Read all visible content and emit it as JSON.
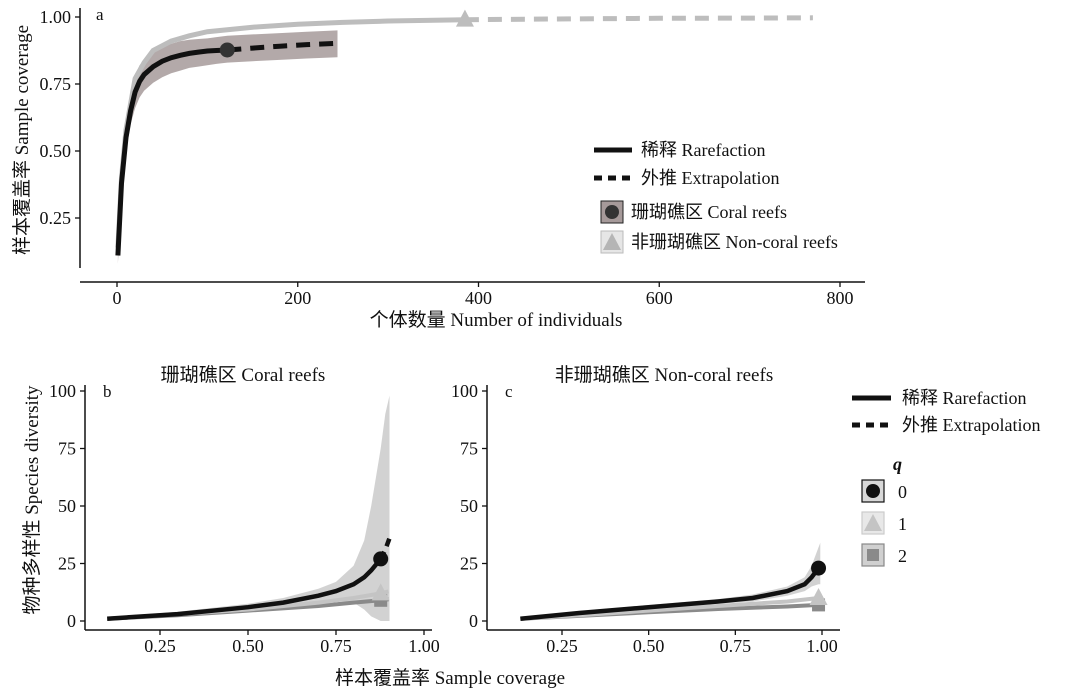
{
  "legend": {
    "rarefaction": "稀释 Rarefaction",
    "extrapolation": "外推 Extrapolation",
    "coral": "珊瑚礁区 Coral reefs",
    "noncoral": "非珊瑚礁区 Non-coral reefs",
    "q_title": "q",
    "q0": "0",
    "q1": "1",
    "q2": "2"
  },
  "colors": {
    "coral": "#111111",
    "noncoral": "#bdbdbd",
    "q0": "#111111",
    "q1": "#c4c4c4",
    "q2": "#8a8a8a",
    "band_dark": "#a69a9a",
    "band_light": "#d0d0d0"
  },
  "chart_data": [
    {
      "panel": "a",
      "type": "line",
      "xlabel": "个体数量 Number of individuals",
      "ylabel": "样本覆盖率 Sample coverage",
      "xlim": [
        -12,
        860
      ],
      "ylim": [
        0.08,
        1.02
      ],
      "xticks": [
        "0",
        "200",
        "400",
        "600",
        "800"
      ],
      "yticks": [
        "0.25",
        "0.50",
        "0.75",
        "1.00"
      ],
      "series": [
        {
          "name": "珊瑚礁区 Coral reefs",
          "observed": {
            "x": 122,
            "y": 0.877
          },
          "rarefaction": {
            "x": [
              1,
              5,
              10,
              15,
              20,
              25,
              30,
              40,
              50,
              60,
              70,
              80,
              90,
              100,
              110,
              122
            ],
            "y": [
              0.11,
              0.38,
              0.55,
              0.65,
              0.72,
              0.76,
              0.785,
              0.815,
              0.835,
              0.848,
              0.857,
              0.864,
              0.869,
              0.873,
              0.875,
              0.877
            ]
          },
          "extrapolation": {
            "x": [
              122,
              150,
              180,
              210,
              244
            ],
            "y": [
              0.877,
              0.884,
              0.891,
              0.897,
              0.902
            ]
          },
          "band_upper": [
            0.2,
            0.45,
            0.62,
            0.72,
            0.78,
            0.82,
            0.84,
            0.87,
            0.89,
            0.9,
            0.91,
            0.915,
            0.918,
            0.92,
            0.925,
            0.93,
            0.935,
            0.94,
            0.945,
            0.95
          ],
          "band_lower": [
            0.08,
            0.32,
            0.5,
            0.6,
            0.66,
            0.7,
            0.725,
            0.755,
            0.775,
            0.79,
            0.8,
            0.81,
            0.815,
            0.82,
            0.825,
            0.83,
            0.835,
            0.84,
            0.845,
            0.85
          ],
          "band_x": [
            1,
            5,
            10,
            15,
            20,
            25,
            30,
            40,
            50,
            60,
            70,
            80,
            90,
            100,
            110,
            122,
            150,
            180,
            210,
            244
          ]
        },
        {
          "name": "非珊瑚礁区 Non-coral reefs",
          "observed": {
            "x": 385,
            "y": 0.99
          },
          "rarefaction": {
            "x": [
              1,
              5,
              10,
              20,
              30,
              40,
              60,
              80,
              100,
              150,
              200,
              250,
              300,
              385
            ],
            "y": [
              0.14,
              0.4,
              0.58,
              0.77,
              0.83,
              0.875,
              0.91,
              0.93,
              0.945,
              0.962,
              0.973,
              0.98,
              0.985,
              0.99
            ]
          },
          "extrapolation": {
            "x": [
              385,
              500,
              600,
              700,
              770
            ],
            "y": [
              0.99,
              0.993,
              0.995,
              0.996,
              0.997
            ]
          }
        }
      ]
    },
    {
      "panel": "b",
      "type": "line",
      "title": "珊瑚礁区 Coral reefs",
      "xlim": [
        0.05,
        1.0
      ],
      "ylim": [
        -3,
        100
      ],
      "xticks": [
        "0.25",
        "0.50",
        "0.75",
        "1.00"
      ],
      "yticks": [
        "0",
        "25",
        "50",
        "75",
        "100"
      ],
      "series": [
        {
          "name": "0",
          "observed": {
            "x": 0.877,
            "y": 27
          },
          "rarefaction": {
            "x": [
              0.1,
              0.3,
              0.5,
              0.6,
              0.7,
              0.75,
              0.8,
              0.83,
              0.85,
              0.877
            ],
            "y": [
              1,
              3,
              6,
              8,
              11,
              13,
              16,
              19,
              22,
              27
            ]
          },
          "extrapolation": {
            "x": [
              0.877,
              0.89,
              0.902
            ],
            "y": [
              27,
              31,
              36
            ]
          },
          "band_x": [
            0.1,
            0.3,
            0.5,
            0.6,
            0.7,
            0.75,
            0.8,
            0.83,
            0.85,
            0.877,
            0.89,
            0.902
          ],
          "band_upper": [
            1.5,
            4,
            7.5,
            10,
            14,
            17,
            24,
            35,
            50,
            75,
            90,
            98
          ],
          "band_lower": [
            0.5,
            2,
            4.5,
            6,
            8,
            9,
            8,
            5,
            2,
            0,
            0,
            0
          ]
        },
        {
          "name": "1",
          "observed": {
            "x": 0.877,
            "y": 12
          },
          "rarefaction": {
            "x": [
              0.1,
              0.3,
              0.5,
              0.7,
              0.8,
              0.877
            ],
            "y": [
              1,
              3,
              5,
              8,
              10,
              12
            ]
          },
          "extrapolation": {
            "x": [
              0.877,
              0.902
            ],
            "y": [
              12,
              13
            ]
          }
        },
        {
          "name": "2",
          "observed": {
            "x": 0.877,
            "y": 9
          },
          "rarefaction": {
            "x": [
              0.1,
              0.3,
              0.5,
              0.7,
              0.8,
              0.877
            ],
            "y": [
              1,
              2.5,
              4.5,
              6.5,
              8,
              9
            ]
          },
          "extrapolation": {
            "x": [
              0.877,
              0.902
            ],
            "y": [
              9,
              9.5
            ]
          }
        }
      ]
    },
    {
      "panel": "c",
      "type": "line",
      "title": "非珊瑚礁区 Non-coral reefs",
      "xlim": [
        0.1,
        1.02
      ],
      "ylim": [
        -3,
        100
      ],
      "xticks": [
        "0.25",
        "0.50",
        "0.75",
        "1.00"
      ],
      "yticks": [
        "0",
        "25",
        "50",
        "75",
        "100"
      ],
      "series": [
        {
          "name": "0",
          "observed": {
            "x": 0.99,
            "y": 23
          },
          "rarefaction": {
            "x": [
              0.13,
              0.3,
              0.5,
              0.7,
              0.8,
              0.9,
              0.95,
              0.97,
              0.99
            ],
            "y": [
              1,
              3.5,
              6,
              8.5,
              10,
              13,
              16,
              19,
              23
            ]
          },
          "extrapolation": {
            "x": [
              0.99,
              0.995
            ],
            "y": [
              23,
              23.5
            ]
          },
          "band_x": [
            0.13,
            0.3,
            0.5,
            0.7,
            0.8,
            0.9,
            0.95,
            0.97,
            0.99,
            0.995
          ],
          "band_upper": [
            1.5,
            4,
            7,
            9.5,
            11.5,
            15,
            19,
            24,
            32,
            34
          ],
          "band_lower": [
            0.5,
            3,
            5,
            7.5,
            8.5,
            11,
            13,
            15,
            16,
            16
          ]
        },
        {
          "name": "1",
          "observed": {
            "x": 0.99,
            "y": 10
          },
          "rarefaction": {
            "x": [
              0.13,
              0.3,
              0.5,
              0.7,
              0.9,
              0.99
            ],
            "y": [
              1,
              2.5,
              4.5,
              6.5,
              8.5,
              10
            ]
          },
          "extrapolation": {
            "x": [
              0.99,
              0.995
            ],
            "y": [
              10,
              10.2
            ]
          }
        },
        {
          "name": "2",
          "observed": {
            "x": 0.99,
            "y": 7
          },
          "rarefaction": {
            "x": [
              0.13,
              0.3,
              0.5,
              0.7,
              0.9,
              0.99
            ],
            "y": [
              1,
              2.2,
              3.8,
              5.2,
              6.3,
              7
            ]
          },
          "extrapolation": {
            "x": [
              0.99,
              0.995
            ],
            "y": [
              7,
              7.1
            ]
          }
        }
      ]
    }
  ]
}
